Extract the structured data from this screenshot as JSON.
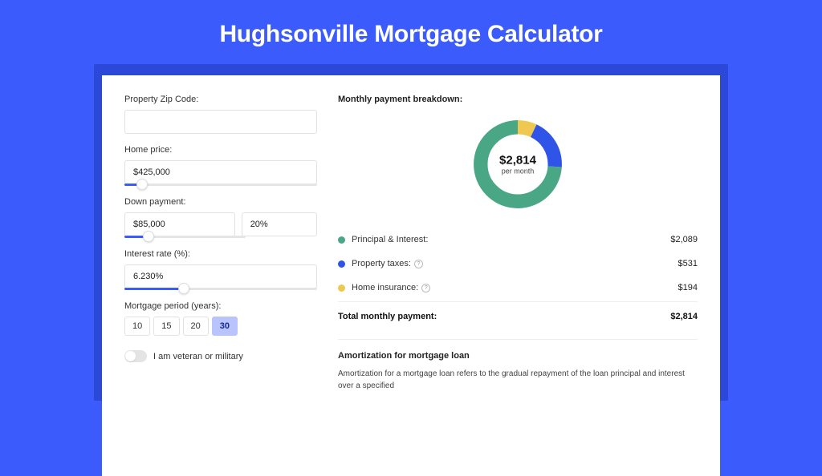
{
  "title": "Hughsonville Mortgage Calculator",
  "form": {
    "zip": {
      "label": "Property Zip Code:",
      "value": ""
    },
    "home_price": {
      "label": "Home price:",
      "value": "$425,000",
      "slider_pct": 9
    },
    "down_payment": {
      "label": "Down payment:",
      "value": "$85,000",
      "pct_value": "20%",
      "slider_pct": 20
    },
    "interest": {
      "label": "Interest rate (%):",
      "value": "6.230%",
      "slider_pct": 31
    },
    "period": {
      "label": "Mortgage period (years):",
      "options": [
        "10",
        "15",
        "20",
        "30"
      ],
      "selected": "30"
    },
    "veteran": {
      "label": "I am veteran or military",
      "on": false
    }
  },
  "breakdown": {
    "title": "Monthly payment breakdown:",
    "center_value": "$2,814",
    "center_sub": "per month",
    "colors": {
      "principal": "#4aa786",
      "taxes": "#3054e8",
      "insurance": "#eec850"
    },
    "slices": {
      "principal_pct": 74,
      "taxes_pct": 19,
      "insurance_pct": 7
    },
    "items": [
      {
        "key": "principal",
        "label": "Principal & Interest:",
        "value": "$2,089",
        "help": false
      },
      {
        "key": "taxes",
        "label": "Property taxes:",
        "value": "$531",
        "help": true
      },
      {
        "key": "insurance",
        "label": "Home insurance:",
        "value": "$194",
        "help": true
      }
    ],
    "total_label": "Total monthly payment:",
    "total_value": "$2,814"
  },
  "amortization": {
    "title": "Amortization for mortgage loan",
    "text": "Amortization for a mortgage loan refers to the gradual repayment of the loan principal and interest over a specified"
  }
}
